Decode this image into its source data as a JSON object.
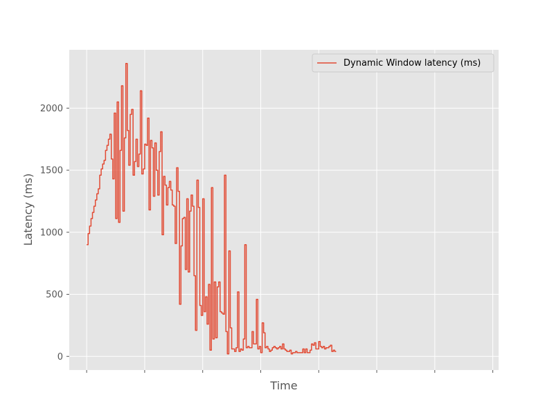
{
  "chart_data": {
    "type": "line",
    "drawstyle": "steps-post",
    "title": "",
    "xlabel": "Time",
    "ylabel": "Latency (ms)",
    "ylim": [
      -110,
      2470
    ],
    "xlim": [
      -3,
      71
    ],
    "x_tick_labels_visible": false,
    "x_tick_count": 8,
    "y_ticks": [
      0,
      500,
      1000,
      1500,
      2000
    ],
    "grid": true,
    "legend": "upper right",
    "colors": {
      "background": "#e5e5e5",
      "grid": "#ffffff",
      "series": "#e24a33"
    },
    "series": [
      {
        "name": "Dynamic Window latency (ms)",
        "x_start": 0,
        "x_step": 0.25,
        "values": [
          900,
          990,
          1050,
          1110,
          1160,
          1210,
          1260,
          1310,
          1350,
          1460,
          1510,
          1550,
          1580,
          1660,
          1700,
          1750,
          1790,
          1590,
          1430,
          1960,
          1110,
          2050,
          1080,
          1660,
          2180,
          1170,
          1760,
          2360,
          1820,
          1540,
          1950,
          1990,
          1460,
          1570,
          1750,
          1530,
          1630,
          2140,
          1470,
          1510,
          1710,
          1700,
          1920,
          1180,
          1740,
          1680,
          1290,
          1720,
          1500,
          1300,
          1650,
          1810,
          980,
          1450,
          1380,
          1220,
          1360,
          1410,
          1340,
          1220,
          1210,
          910,
          1520,
          1330,
          420,
          890,
          1110,
          1120,
          700,
          1270,
          680,
          1170,
          1300,
          1210,
          650,
          210,
          1420,
          1200,
          410,
          330,
          1270,
          360,
          480,
          260,
          580,
          50,
          1360,
          140,
          600,
          150,
          560,
          600,
          360,
          350,
          340,
          1460,
          200,
          20,
          850,
          230,
          60,
          60,
          40,
          70,
          520,
          40,
          60,
          50,
          140,
          900,
          70,
          80,
          70,
          70,
          200,
          100,
          100,
          460,
          60,
          80,
          30,
          270,
          190,
          70,
          80,
          60,
          40,
          50,
          70,
          80,
          70,
          60,
          70,
          80,
          60,
          100,
          60,
          50,
          40,
          40,
          50,
          20,
          30,
          30,
          40,
          30,
          30,
          30,
          30,
          60,
          30,
          60,
          30,
          30,
          50,
          100,
          90,
          110,
          60,
          60,
          120,
          80,
          70,
          80,
          60,
          70,
          70,
          80,
          90,
          40,
          50,
          40
        ]
      }
    ]
  }
}
